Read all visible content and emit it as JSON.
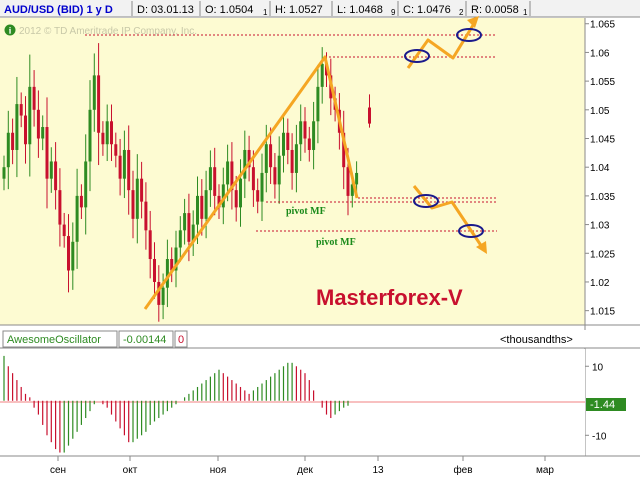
{
  "header": {
    "symbol": "AUD/USD (BID) 1 y D",
    "date": "D: 03.01.13",
    "open": "O: 1.0504",
    "open_sub": "1",
    "high": "H: 1.0527",
    "low": "L: 1.0468",
    "low_sub": "9",
    "close": "C: 1.0476",
    "close_sub": "2",
    "range": "R: 0.0058",
    "range_sub": "1"
  },
  "watermark": "2012 © TD Ameritrade IP Company, Inc.",
  "info_icon": "info-icon",
  "brand_label": "Masterforex-V",
  "pivot_labels": [
    "pivot MF",
    "pivot MF"
  ],
  "oscillator": {
    "name": "AwesomeOscillator",
    "value": "-0.00144",
    "extra": "0",
    "units": "<thousandths>",
    "current_label": "-1.44"
  },
  "colors": {
    "bull_candle": "#2e8b22",
    "bear_candle": "#c8102e",
    "price_bg": "#fdfbd2",
    "zigzag": "#f5a623",
    "pivot_line": "#c8102e",
    "ellipse": "#1a1a8c",
    "osc_up": "#2e8b22",
    "osc_down": "#c8102e"
  },
  "chart_data": [
    {
      "type": "candlestick",
      "series_name": "AUD/USD (BID)",
      "x_tick_labels": [
        "сен",
        "окт",
        "ноя",
        "дек",
        "13",
        "фев",
        "мар"
      ],
      "y_tick_labels": [
        "1.065",
        "1.06",
        "1.055",
        "1.05",
        "1.045",
        "1.04",
        "1.035",
        "1.03",
        "1.025",
        "1.02",
        "1.015"
      ],
      "ylim": [
        1.0125,
        1.066
      ],
      "closes": [
        1.04,
        1.046,
        1.043,
        1.051,
        1.049,
        1.044,
        1.054,
        1.05,
        1.045,
        1.047,
        1.038,
        1.041,
        1.036,
        1.03,
        1.028,
        1.022,
        1.027,
        1.035,
        1.033,
        1.041,
        1.05,
        1.056,
        1.046,
        1.044,
        1.048,
        1.044,
        1.042,
        1.038,
        1.043,
        1.036,
        1.031,
        1.038,
        1.034,
        1.029,
        1.024,
        1.02,
        1.016,
        1.019,
        1.024,
        1.022,
        1.026,
        1.029,
        1.032,
        1.027,
        1.03,
        1.035,
        1.031,
        1.036,
        1.04,
        1.035,
        1.033,
        1.037,
        1.041,
        1.036,
        1.033,
        1.038,
        1.043,
        1.04,
        1.036,
        1.034,
        1.039,
        1.044,
        1.04,
        1.037,
        1.042,
        1.046,
        1.043,
        1.039,
        1.044,
        1.048,
        1.045,
        1.043,
        1.048,
        1.054,
        1.058,
        1.056,
        1.052,
        1.05,
        1.046,
        1.04,
        1.035,
        1.037,
        1.039
      ],
      "gap_count": 2,
      "after_gap": [
        {
          "open": 1.0504,
          "high": 1.0527,
          "low": 1.0469,
          "close": 1.0476
        }
      ]
    },
    {
      "type": "bar",
      "series_name": "AwesomeOscillator",
      "units": "thousandths",
      "y_tick_labels": [
        "10",
        "-10"
      ],
      "ylim": [
        -16,
        15
      ],
      "values": [
        13,
        10,
        8,
        6,
        4,
        2,
        1,
        -2,
        -4,
        -7,
        -10,
        -12,
        -14,
        -15,
        -15,
        -13,
        -11,
        -9,
        -7,
        -5,
        -3,
        -1,
        0,
        -1,
        -2,
        -4,
        -6,
        -8,
        -10,
        -12,
        -12,
        -11,
        -10,
        -9,
        -7,
        -6,
        -5,
        -4,
        -3,
        -2,
        -1,
        0,
        1,
        2,
        3,
        4,
        5,
        6,
        7,
        8,
        9,
        8,
        7,
        6,
        5,
        4,
        3,
        2,
        3,
        4,
        5,
        6,
        7,
        8,
        9,
        10,
        11,
        11,
        10,
        9,
        8,
        6,
        3,
        0,
        -2,
        -4,
        -5,
        -4,
        -3,
        -2,
        -1.44
      ]
    }
  ]
}
